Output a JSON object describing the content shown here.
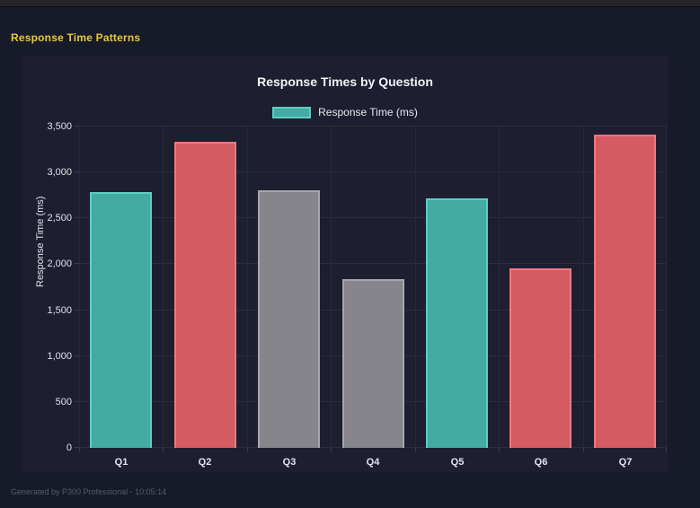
{
  "page": {
    "header_title": "Response Time Patterns",
    "footer_text": "Generated by P300 Professional - 10:05:14"
  },
  "chart": {
    "title": "Response Times by Question",
    "legend_label": "Response Time (ms)",
    "y_axis_title": "Response Time (ms)"
  },
  "colors": {
    "background_outer": "#171a29",
    "background_panel": "#1d1f31",
    "header_yellow": "#e6ca3a",
    "teal_fill": "#43aba3",
    "teal_border": "#5fcdc2",
    "red_fill": "#d45b62",
    "red_border": "#f0777f",
    "gray_fill": "#85858b",
    "gray_border": "#a6a6ac"
  },
  "chart_data": {
    "type": "bar",
    "title": "Response Times by Question",
    "categories": [
      "Q1",
      "Q2",
      "Q3",
      "Q4",
      "Q5",
      "Q6",
      "Q7"
    ],
    "series": [
      {
        "name": "Response Time (ms)",
        "values": [
          2790,
          3330,
          2810,
          1840,
          2720,
          1960,
          3410
        ]
      }
    ],
    "bar_color_keys": [
      "teal",
      "red",
      "gray",
      "gray",
      "teal",
      "red",
      "red"
    ],
    "xlabel": "",
    "ylabel": "Response Time (ms)",
    "ylim": [
      0,
      3500
    ],
    "ytick_step": 500,
    "ytick_labels": [
      "0",
      "500",
      "1,000",
      "1,500",
      "2,000",
      "2,500",
      "3,000",
      "3,500"
    ],
    "grid": true,
    "legend_position": "top"
  }
}
